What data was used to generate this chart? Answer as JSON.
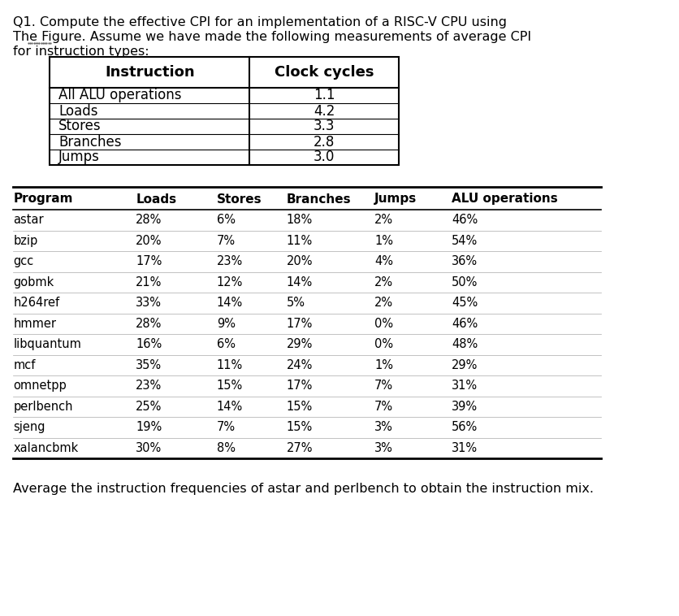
{
  "title_lines": [
    "Q1. Compute the effective CPI for an implementation of a RISC-V CPU using",
    "The Figure. Assume we have made the following measurements of average CPI",
    "for instruction types:"
  ],
  "table1_headers": [
    "Instruction",
    "Clock cycles"
  ],
  "table1_rows": [
    [
      "All ALU operations",
      "1.1"
    ],
    [
      "Loads",
      "4.2"
    ],
    [
      "Stores",
      "3.3"
    ],
    [
      "Branches",
      "2.8"
    ],
    [
      "Jumps",
      "3.0"
    ]
  ],
  "table2_headers": [
    "Program",
    "Loads",
    "Stores",
    "Branches",
    "Jumps",
    "ALU operations"
  ],
  "table2_rows": [
    [
      "astar",
      "28%",
      "6%",
      "18%",
      "2%",
      "46%"
    ],
    [
      "bzip",
      "20%",
      "7%",
      "11%",
      "1%",
      "54%"
    ],
    [
      "gcc",
      "17%",
      "23%",
      "20%",
      "4%",
      "36%"
    ],
    [
      "gobmk",
      "21%",
      "12%",
      "14%",
      "2%",
      "50%"
    ],
    [
      "h264ref",
      "33%",
      "14%",
      "5%",
      "2%",
      "45%"
    ],
    [
      "hmmer",
      "28%",
      "9%",
      "17%",
      "0%",
      "46%"
    ],
    [
      "libquantum",
      "16%",
      "6%",
      "29%",
      "0%",
      "48%"
    ],
    [
      "mcf",
      "35%",
      "11%",
      "24%",
      "1%",
      "29%"
    ],
    [
      "omnetpp",
      "23%",
      "15%",
      "17%",
      "7%",
      "31%"
    ],
    [
      "perlbench",
      "25%",
      "14%",
      "15%",
      "7%",
      "39%"
    ],
    [
      "sjeng",
      "19%",
      "7%",
      "15%",
      "3%",
      "56%"
    ],
    [
      "xalancbmk",
      "30%",
      "8%",
      "27%",
      "3%",
      "31%"
    ]
  ],
  "footer_text": "Average the instruction frequencies of astar and perlbench to obtain the instruction mix.",
  "bg_color": "#ffffff",
  "text_color": "#000000",
  "table1_border_color": "#000000",
  "table2_line_color": "#000000",
  "title_underline_word": "Figure",
  "title_font_size": 11.5,
  "table1_header_font_size": 13,
  "table1_body_font_size": 12,
  "table2_header_font_size": 11,
  "table2_body_font_size": 10.5,
  "footer_font_size": 11.5
}
